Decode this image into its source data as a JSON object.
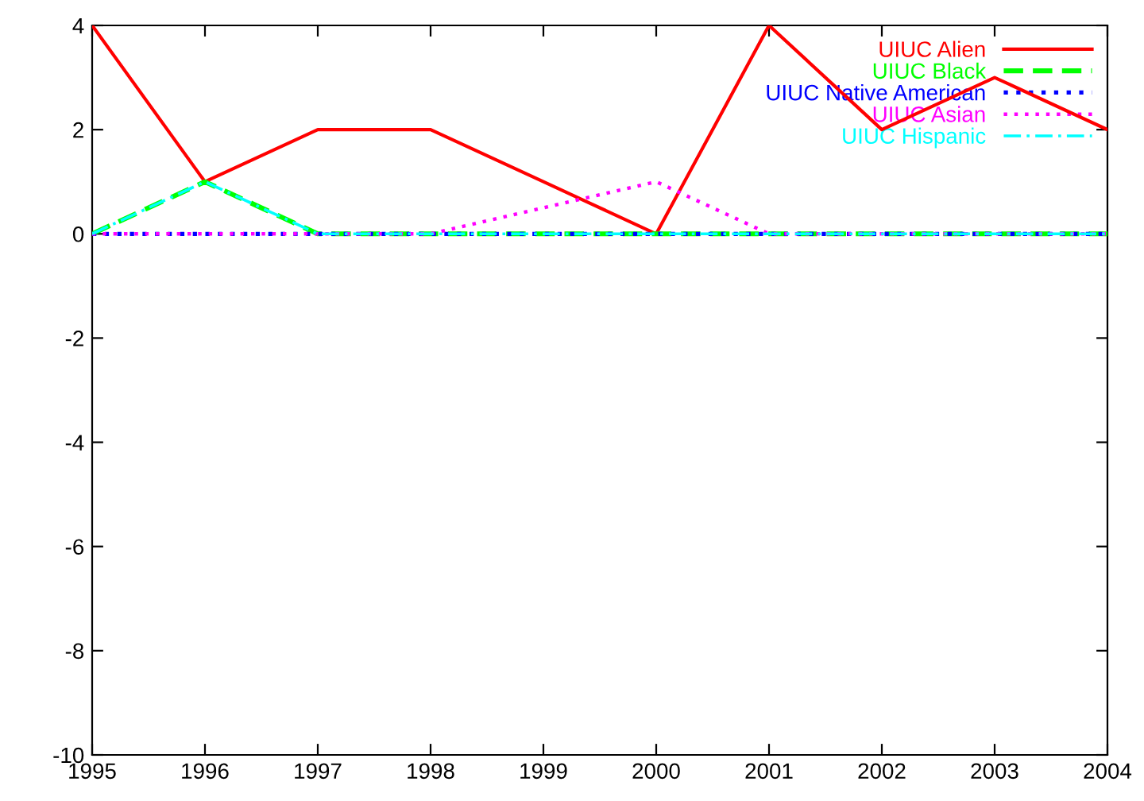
{
  "chart_data": {
    "type": "line",
    "x": [
      1995,
      1996,
      1997,
      1998,
      1999,
      2000,
      2001,
      2002,
      2003,
      2004
    ],
    "series": [
      {
        "name": "UIUC Alien",
        "color": "#ff0000",
        "line_style": "solid",
        "values": [
          4,
          1,
          2,
          2,
          1,
          0,
          4,
          2,
          3,
          2
        ]
      },
      {
        "name": "UIUC Black",
        "color": "#00ff00",
        "line_style": "dashed",
        "values": [
          0,
          1,
          0,
          0,
          0,
          0,
          0,
          0,
          0,
          0
        ]
      },
      {
        "name": "UIUC Native American",
        "color": "#0000ff",
        "line_style": "dotted",
        "values": [
          0,
          0,
          0,
          0,
          0,
          0,
          0,
          0,
          0,
          0
        ]
      },
      {
        "name": "UIUC Asian",
        "color": "#ff00ff",
        "line_style": "dotted",
        "values": [
          0,
          0,
          0,
          0,
          0.5,
          1,
          0,
          0,
          0,
          0
        ]
      },
      {
        "name": "UIUC Hispanic",
        "color": "#00ffff",
        "line_style": "dashdot",
        "values": [
          0,
          1,
          0,
          0,
          0,
          0,
          0,
          0,
          0,
          0
        ]
      }
    ],
    "xlim": [
      1995,
      2004
    ],
    "xticks": [
      1995,
      1996,
      1997,
      1998,
      1999,
      2000,
      2001,
      2002,
      2003,
      2004
    ],
    "ylim": [
      -10,
      4
    ],
    "yticks": [
      -10,
      -8,
      -6,
      -4,
      -2,
      0,
      2,
      4
    ],
    "grid": false,
    "legend": "top right",
    "marker": "none"
  }
}
